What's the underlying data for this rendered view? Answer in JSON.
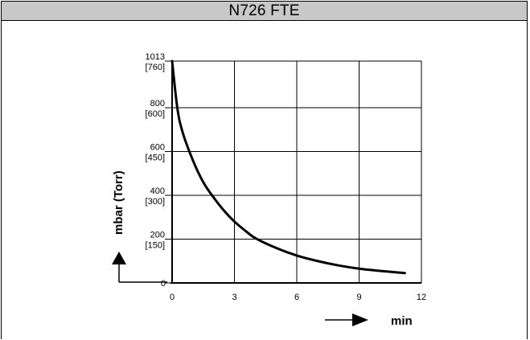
{
  "header": {
    "title": "N726 FTE"
  },
  "chart_data": {
    "type": "line",
    "title": "N726 FTE",
    "xlabel": "min",
    "ylabel": "mbar (Torr)",
    "xlim": [
      0,
      12
    ],
    "ylim": [
      0,
      1013
    ],
    "grid": true,
    "x_ticks": [
      "0",
      "3",
      "6",
      "9",
      "12"
    ],
    "y_ticks": [
      {
        "mbar": "0",
        "torr": ""
      },
      {
        "mbar": "200",
        "torr": "[150]"
      },
      {
        "mbar": "400",
        "torr": "[300]"
      },
      {
        "mbar": "600",
        "torr": "[450]"
      },
      {
        "mbar": "800",
        "torr": "[600]"
      },
      {
        "mbar": "1013",
        "torr": "[760]"
      }
    ],
    "series": [
      {
        "x": [
          0,
          0.25,
          0.5,
          1,
          1.5,
          2,
          2.5,
          3,
          3.5,
          4,
          5,
          6,
          7,
          8,
          9,
          10,
          11.2
        ],
        "values": [
          1013,
          800,
          690,
          560,
          460,
          390,
          330,
          280,
          240,
          205,
          160,
          125,
          100,
          80,
          65,
          55,
          45
        ]
      }
    ]
  }
}
